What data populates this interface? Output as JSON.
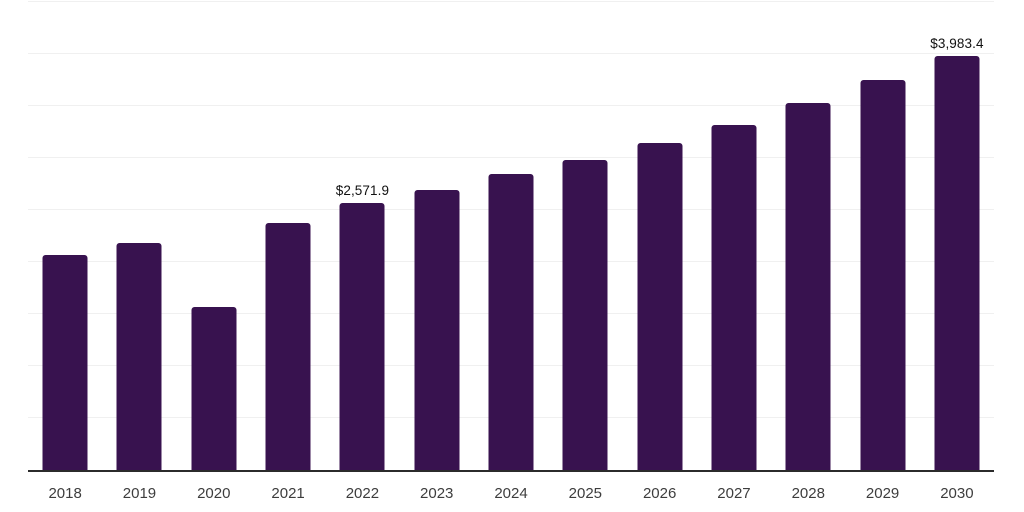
{
  "chart_data": {
    "type": "bar",
    "title": "",
    "xlabel": "",
    "ylabel": "",
    "categories": [
      "2018",
      "2019",
      "2020",
      "2021",
      "2022",
      "2023",
      "2024",
      "2025",
      "2026",
      "2027",
      "2028",
      "2029",
      "2030"
    ],
    "values": [
      2070,
      2180,
      1572,
      2378,
      2571.9,
      2695,
      2843,
      2984,
      3148,
      3321,
      3529,
      3748,
      3983.4
    ],
    "data_labels": [
      null,
      null,
      null,
      null,
      "$2,571.9",
      null,
      null,
      null,
      null,
      null,
      null,
      null,
      "$3,983.4"
    ],
    "labeled_points_only": [
      "2022",
      "2030"
    ],
    "currency_prefix": "$",
    "ylim": [
      0,
      4500
    ],
    "grid_step": 500,
    "grid": true,
    "y_tick_labels_visible": false,
    "legend": false,
    "legend_position": "none"
  },
  "style": {
    "background": "#ffffff",
    "bar_color": "#38124F",
    "grid_color": "#f0f0f0",
    "axis_line_color": "#2b2b2b",
    "x_tick_color": "#3d3d3d",
    "data_label_color": "#111111"
  }
}
